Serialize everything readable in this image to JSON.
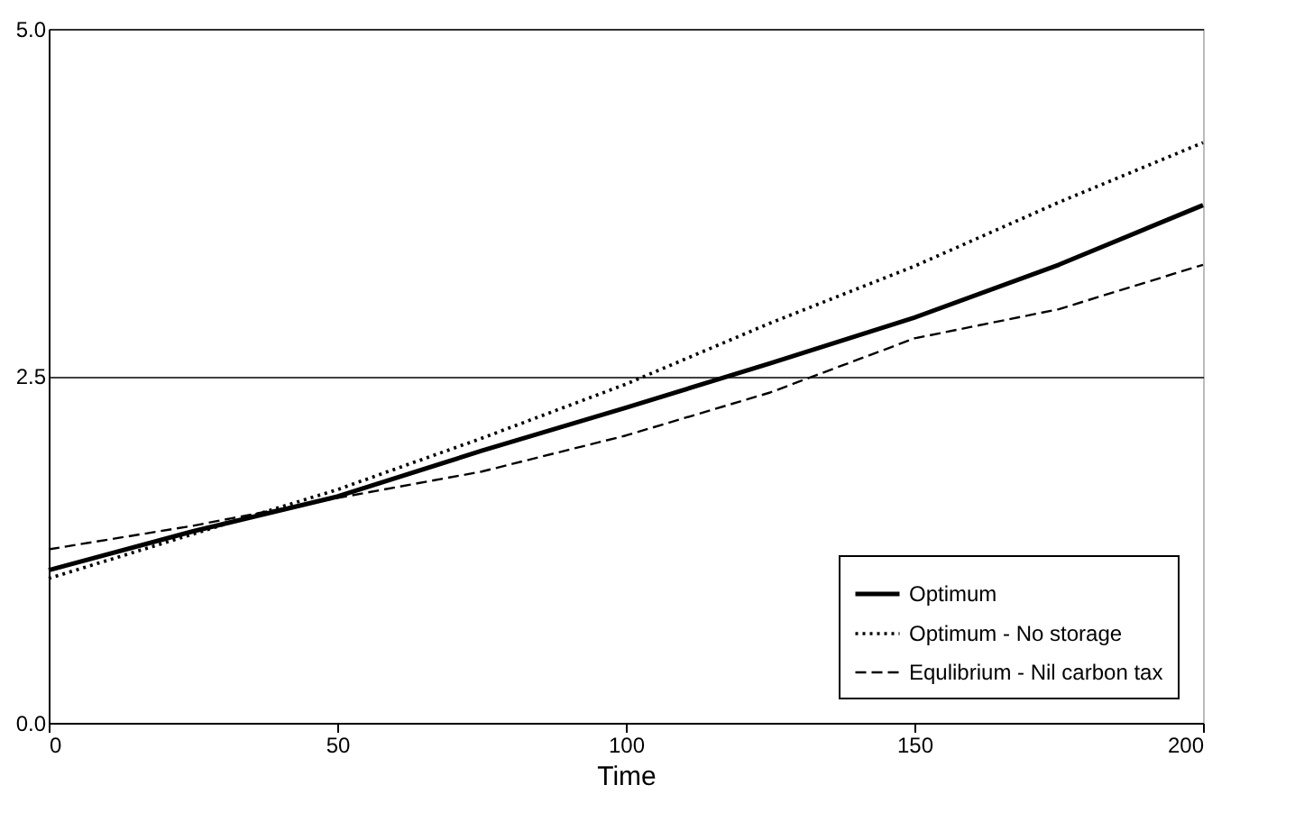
{
  "chart_data": {
    "type": "line",
    "xlabel": "Time",
    "x": [
      0,
      25,
      50,
      75,
      100,
      125,
      150,
      175,
      200
    ],
    "series": [
      {
        "name": "Optimum",
        "color": "#000000",
        "line_style": "solid",
        "values": [
          1.1,
          1.38,
          1.63,
          1.96,
          2.27,
          2.59,
          2.92,
          3.3,
          3.73
        ]
      },
      {
        "name": "Optimum - No storage",
        "color": "#000000",
        "line_style": "dotted",
        "values": [
          1.04,
          1.36,
          1.68,
          2.05,
          2.44,
          2.88,
          3.29,
          3.75,
          4.18
        ]
      },
      {
        "name": "Equlibrium - Nil carbon tax",
        "color": "#000000",
        "line_style": "dashed",
        "values": [
          1.25,
          1.42,
          1.62,
          1.81,
          2.07,
          2.38,
          2.77,
          2.98,
          3.3
        ]
      }
    ],
    "xlim": [
      0,
      200
    ],
    "xticks": [
      0,
      50,
      100,
      150,
      200
    ],
    "ylim": [
      0,
      5
    ],
    "yticks": [
      {
        "value": 0,
        "label": "0.0"
      },
      2.5,
      {
        "value": 5,
        "label": "5.0"
      }
    ],
    "grid": "y",
    "legend": "bottom right",
    "marker": "none"
  }
}
